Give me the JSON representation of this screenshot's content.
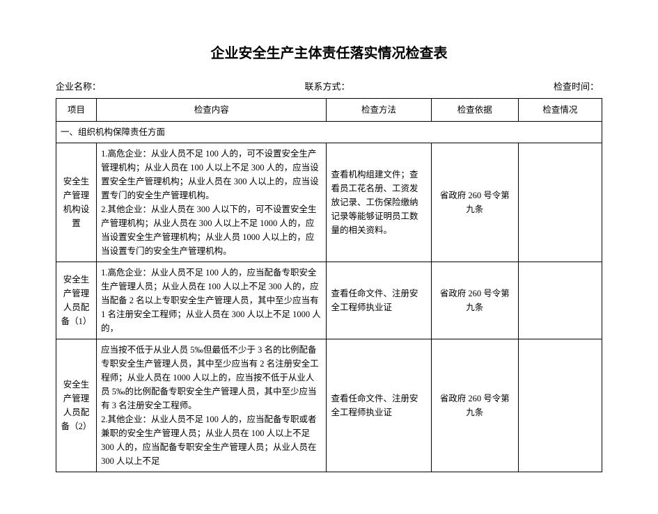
{
  "title": "企业安全生产主体责任落实情况检查表",
  "info": {
    "company_label": "企业名称：",
    "contact_label": "联系方式：",
    "time_label": "检查时间："
  },
  "columns": {
    "project": "项目",
    "content": "检查内容",
    "method": "检查方法",
    "basis": "检查依据",
    "status": "检查情况"
  },
  "section1_title": "一、组织机构保障责任方面",
  "rows": [
    {
      "project": "安全生产管理机构设置",
      "content": "1.高危企业：从业人员不足 100 人的，可不设置安全生产管理机构；从业人员在 100 人以上不足 300 人的，应当设置安全生产管理机构；从业人员在 300 人以上的，应当设置专门的安全生产管理机构。\n2.其他企业：从业人员在 300 人以下的，可不设置安全生产管理机构；从业人员在 300 人以上不足 1000 人的，应当设置安全生产管理机构；从业人员 1000 人以上的，应当设置专门的安全生产管理机构。",
      "method": "查看机构组建文件；查看员工花名册、工资发放记录、工伤保险缴纳记录等能够证明员工数量的相关资料。",
      "basis": "省政府 260 号令第九条",
      "status": ""
    },
    {
      "project": "安全生产管理人员配备（1）",
      "content": "1.高危企业：从业人员不足 100 人的，应当配备专职安全生产管理人员；从业人员在 100 人以上不足 300 人的，应当配备 2 名以上专职安全生产管理人员，其中至少应当有 1 名注册安全工程师；从业人员在 300 人以上不足 1000 人的，",
      "method": "查看任命文件、注册安全工程师执业证",
      "basis": "省政府 260 号令第九条",
      "status": ""
    },
    {
      "project": "安全生产管理人员配备（2）",
      "content": "应当按不低于从业人员 5‰但最低不少于 3 名的比例配备专职安全生产管理人员，其中至少应当有 2 名注册安全工程师；从业人员在 1000 人以上的，应当按不低于从业人员 5‰的比例配备专职安全生产管理人员，其中至少应当有 3 名注册安全工程师。\n2.其他企业：从业人员不足 100 人的，应当配备专职或者兼职的安全生产管理人员；从业人员在 100 人以上不足 300 人的，应当配备专职安全生产管理人员；从业人员在 300 人以上不足",
      "method": "查看任命文件、注册安全工程师执业证",
      "basis": "省政府 260 号令第九条",
      "status": ""
    }
  ]
}
